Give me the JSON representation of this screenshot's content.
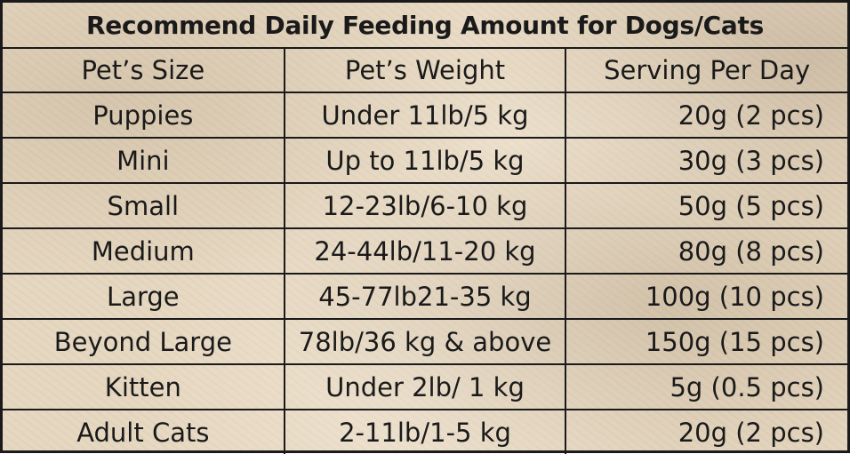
{
  "title": "Recommend Daily Feeding Amount for Dogs/Cats",
  "columns": [
    "Pet’s Size",
    "Pet’s Weight",
    "Serving Per Day"
  ],
  "rows": [
    {
      "size": "Puppies",
      "weight": "Under 11lb/5 kg",
      "serving": "20g (2 pcs)"
    },
    {
      "size": "Mini",
      "weight": "Up to 11lb/5 kg",
      "serving": "30g (3 pcs)"
    },
    {
      "size": "Small",
      "weight": "12-23lb/6-10 kg",
      "serving": "50g (5 pcs)"
    },
    {
      "size": "Medium",
      "weight": "24-44lb/11-20 kg",
      "serving": "80g (8 pcs)"
    },
    {
      "size": "Large",
      "weight": "45-77lb21-35 kg",
      "serving": "100g (10 pcs)"
    },
    {
      "size": "Beyond Large",
      "weight": "78lb/36 kg & above",
      "serving": "150g (15 pcs)"
    },
    {
      "size": "Kitten",
      "weight": "Under 2lb/ 1 kg",
      "serving": "5g (0.5 pcs)"
    },
    {
      "size": "Adult Cats",
      "weight": "2-11lb/1-5 kg",
      "serving": "20g (2 pcs)"
    }
  ],
  "colors": {
    "background": "#e6d7c0",
    "text": "#1a1a1a",
    "grid": "#1a1a1a"
  }
}
